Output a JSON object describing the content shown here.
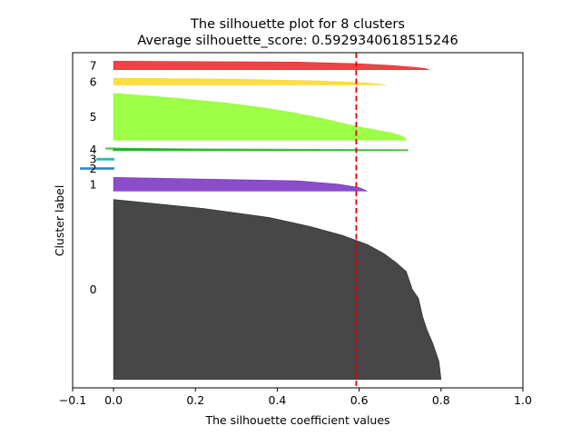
{
  "chart_data": {
    "type": "area",
    "title": "The silhouette plot for 8 clusters",
    "subtitle": "Average silhouette_score: 0.5929340618515246",
    "xlabel": "The silhouette coefficient values",
    "ylabel": "Cluster label",
    "xlim": [
      -0.1,
      1.0
    ],
    "xticks": [
      "−0.1",
      "0.0",
      "0.2",
      "0.4",
      "0.6",
      "0.8",
      "1.0"
    ],
    "xtick_values": [
      -0.1,
      0.0,
      0.2,
      0.4,
      0.6,
      0.8,
      1.0
    ],
    "average_score": 0.5929340618515246,
    "grid": false,
    "clusters": [
      {
        "label": "0",
        "color": "#000000",
        "size": 212,
        "max_value": 0.8,
        "profile": [
          [
            0,
            0.8
          ],
          [
            0.1,
            0.795
          ],
          [
            0.2,
            0.78
          ],
          [
            0.28,
            0.765
          ],
          [
            0.35,
            0.755
          ],
          [
            0.45,
            0.745
          ],
          [
            0.5,
            0.73
          ],
          [
            0.6,
            0.715
          ],
          [
            0.65,
            0.69
          ],
          [
            0.7,
            0.66
          ],
          [
            0.75,
            0.62
          ],
          [
            0.8,
            0.56
          ],
          [
            0.85,
            0.48
          ],
          [
            0.9,
            0.38
          ],
          [
            0.95,
            0.22
          ],
          [
            1.0,
            0.0
          ]
        ]
      },
      {
        "label": "1",
        "color": "#5e09b5",
        "size": 16,
        "max_value": 0.62,
        "profile": [
          [
            0,
            0.62
          ],
          [
            0.25,
            0.6
          ],
          [
            0.5,
            0.55
          ],
          [
            0.75,
            0.45
          ],
          [
            1.0,
            0.0
          ]
        ]
      },
      {
        "label": "2",
        "color": "#0a7dd1",
        "size": 1,
        "max_value": -0.08,
        "profile": [
          [
            0,
            -0.08
          ],
          [
            1.0,
            -0.08
          ]
        ]
      },
      {
        "label": "3",
        "color": "#00b0a0",
        "size": 1,
        "max_value": -0.04,
        "profile": [
          [
            0,
            -0.04
          ],
          [
            1.0,
            -0.04
          ]
        ]
      },
      {
        "label": "4",
        "color": "#00a800",
        "size": 2,
        "max_value": 0.72,
        "profile": [
          [
            0,
            0.72
          ],
          [
            0.5,
            0.2
          ],
          [
            1.0,
            -0.02
          ]
        ]
      },
      {
        "label": "5",
        "color": "#77ff00",
        "size": 55,
        "max_value": 0.715,
        "profile": [
          [
            0,
            0.715
          ],
          [
            0.05,
            0.712
          ],
          [
            0.1,
            0.7
          ],
          [
            0.15,
            0.68
          ],
          [
            0.2,
            0.65
          ],
          [
            0.25,
            0.62
          ],
          [
            0.3,
            0.59
          ],
          [
            0.35,
            0.565
          ],
          [
            0.4,
            0.54
          ],
          [
            0.5,
            0.49
          ],
          [
            0.6,
            0.43
          ],
          [
            0.7,
            0.36
          ],
          [
            0.8,
            0.27
          ],
          [
            0.9,
            0.15
          ],
          [
            1.0,
            0.0
          ]
        ]
      },
      {
        "label": "6",
        "color": "#ffd000",
        "size": 8,
        "max_value": 0.665,
        "profile": [
          [
            0,
            0.665
          ],
          [
            0.3,
            0.62
          ],
          [
            0.6,
            0.5
          ],
          [
            0.85,
            0.3
          ],
          [
            1.0,
            0.0
          ]
        ]
      },
      {
        "label": "7",
        "color": "#e00000",
        "size": 10,
        "max_value": 0.77,
        "profile": [
          [
            0,
            0.77
          ],
          [
            0.15,
            0.76
          ],
          [
            0.3,
            0.73
          ],
          [
            0.5,
            0.68
          ],
          [
            0.7,
            0.6
          ],
          [
            0.9,
            0.45
          ],
          [
            1.0,
            0.0
          ]
        ]
      }
    ]
  }
}
